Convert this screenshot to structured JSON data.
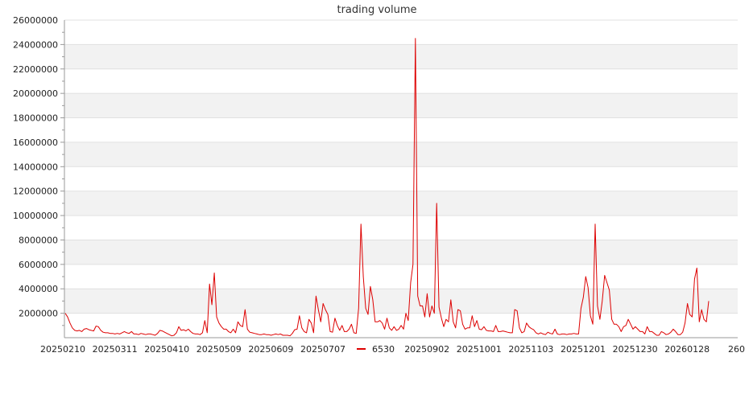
{
  "chart_data": {
    "type": "line",
    "title": "trading volume",
    "xlabel": "",
    "ylabel": "",
    "ylim": [
      0,
      26000000
    ],
    "y_ticks": [
      "2000000",
      "4000000",
      "6000000",
      "8000000",
      "10000000",
      "12000000",
      "14000000",
      "16000000",
      "18000000",
      "20000000",
      "22000000",
      "24000000",
      "26000000"
    ],
    "x_ticks": [
      "20250210",
      "20250311",
      "20250410",
      "20250509",
      "20250609",
      "20250707",
      "20250902",
      "20251001",
      "20251103",
      "20251201",
      "20251230",
      "20260128",
      "260"
    ],
    "grid": true,
    "legend_position": "bottom",
    "series": [
      {
        "name": "6530",
        "color": "#dd0000",
        "values": [
          2000000,
          1700000,
          1200000,
          800000,
          600000,
          550000,
          600000,
          500000,
          700000,
          750000,
          650000,
          600000,
          550000,
          950000,
          900000,
          600000,
          450000,
          400000,
          400000,
          350000,
          350000,
          300000,
          350000,
          300000,
          400000,
          500000,
          400000,
          350000,
          500000,
          300000,
          300000,
          250000,
          350000,
          300000,
          250000,
          300000,
          300000,
          250000,
          200000,
          350000,
          600000,
          550000,
          450000,
          350000,
          250000,
          150000,
          200000,
          400000,
          900000,
          600000,
          650000,
          550000,
          700000,
          500000,
          350000,
          300000,
          300000,
          250000,
          400000,
          1400000,
          400000,
          4400000,
          2700000,
          5300000,
          1700000,
          1200000,
          900000,
          700000,
          700000,
          500000,
          400000,
          700000,
          400000,
          1300000,
          1000000,
          900000,
          2300000,
          700000,
          450000,
          400000,
          350000,
          300000,
          250000,
          250000,
          300000,
          250000,
          250000,
          200000,
          250000,
          300000,
          250000,
          300000,
          200000,
          200000,
          200000,
          150000,
          350000,
          650000,
          700000,
          1800000,
          800000,
          500000,
          400000,
          1500000,
          1200000,
          400000,
          3400000,
          2300000,
          1300000,
          2800000,
          2300000,
          1900000,
          500000,
          450000,
          1600000,
          1000000,
          600000,
          1000000,
          500000,
          500000,
          700000,
          1100000,
          400000,
          350000,
          2400000,
          9300000,
          5000000,
          2400000,
          1900000,
          4200000,
          3100000,
          1300000,
          1300000,
          1400000,
          1200000,
          700000,
          1600000,
          800000,
          600000,
          900000,
          600000,
          700000,
          1000000,
          700000,
          2000000,
          1400000,
          4500000,
          6000000,
          24500000,
          3400000,
          2600000,
          2600000,
          1700000,
          3600000,
          1700000,
          2600000,
          2000000,
          11000000,
          2500000,
          1600000,
          900000,
          1500000,
          1300000,
          3100000,
          1300000,
          800000,
          2300000,
          2200000,
          1100000,
          700000,
          800000,
          800000,
          1800000,
          900000,
          1400000,
          700000,
          650000,
          900000,
          600000,
          550000,
          550000,
          500000,
          1000000,
          500000,
          500000,
          550000,
          500000,
          450000,
          400000,
          400000,
          2300000,
          2200000,
          800000,
          400000,
          500000,
          1200000,
          900000,
          750000,
          650000,
          400000,
          300000,
          400000,
          300000,
          250000,
          450000,
          350000,
          300000,
          700000,
          300000,
          250000,
          300000,
          300000,
          250000,
          300000,
          300000,
          350000,
          300000,
          300000,
          2400000,
          3300000,
          5000000,
          4100000,
          1800000,
          1100000,
          9300000,
          2600000,
          1500000,
          3000000,
          5100000,
          4500000,
          3900000,
          1500000,
          1100000,
          1100000,
          900000,
          500000,
          900000,
          1000000,
          1500000,
          1100000,
          700000,
          900000,
          700000,
          500000,
          500000,
          300000,
          900000,
          500000,
          500000,
          350000,
          200000,
          200000,
          500000,
          400000,
          250000,
          300000,
          450000,
          700000,
          500000,
          250000,
          250000,
          450000,
          1200000,
          2800000,
          1900000,
          1700000,
          4800000,
          5700000,
          1300000,
          2300000,
          1500000,
          1300000,
          3000000
        ]
      }
    ]
  }
}
